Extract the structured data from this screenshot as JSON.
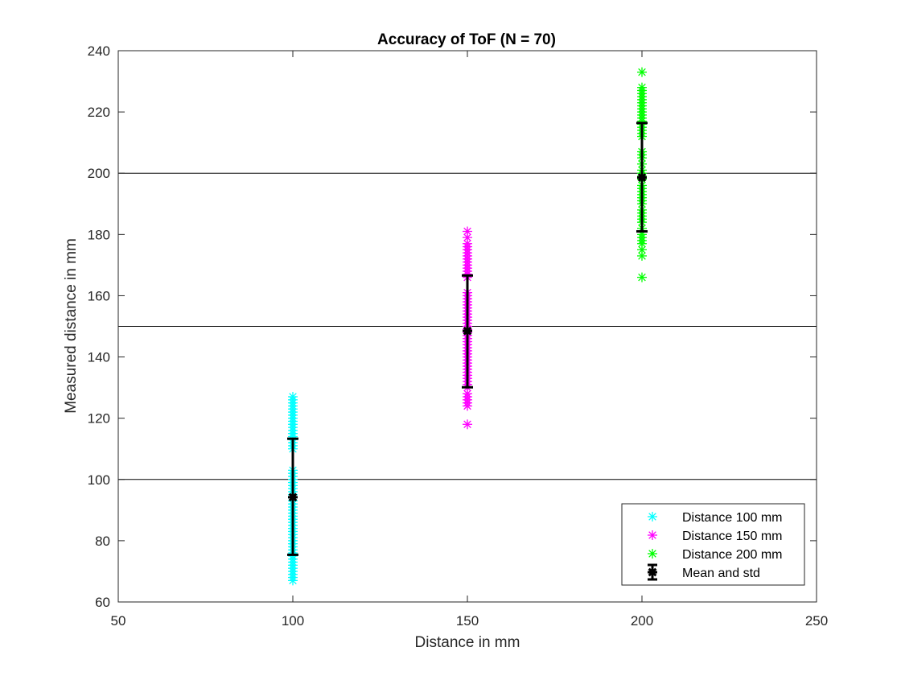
{
  "chart_data": {
    "type": "scatter",
    "title": "Accuracy of ToF (N = 70)",
    "xlabel": "Distance in mm",
    "ylabel": "Measured distance in mm",
    "xlim": [
      50,
      250
    ],
    "ylim": [
      60,
      240
    ],
    "xticks": [
      50,
      100,
      150,
      200,
      250
    ],
    "yticks": [
      60,
      80,
      100,
      120,
      140,
      160,
      180,
      200,
      220,
      240
    ],
    "reference_lines_y": [
      100,
      150,
      200
    ],
    "grid": false,
    "legend_position": "bottom-right",
    "series": [
      {
        "name": "Distance 100 mm",
        "color": "#00ffff",
        "marker": "asterisk",
        "x": 100,
        "y": [
          67,
          68,
          69,
          70,
          71,
          72,
          73,
          74,
          75,
          76,
          77,
          78,
          79,
          80,
          81,
          82,
          83,
          84,
          85,
          86,
          87,
          88,
          89,
          90,
          91,
          92,
          93,
          94,
          95,
          96,
          97,
          98,
          99,
          100,
          101,
          102,
          103,
          110,
          111,
          112,
          113,
          114,
          115,
          116,
          117,
          118,
          119,
          120,
          121,
          122,
          123,
          124,
          125,
          126,
          127
        ]
      },
      {
        "name": "Distance 150 mm",
        "color": "#ff00ff",
        "marker": "asterisk",
        "x": 150,
        "y": [
          118,
          124,
          125,
          126,
          127,
          128,
          130,
          131,
          132,
          133,
          134,
          135,
          136,
          137,
          138,
          139,
          140,
          141,
          142,
          143,
          144,
          145,
          146,
          147,
          148,
          149,
          150,
          151,
          152,
          153,
          154,
          155,
          156,
          157,
          158,
          159,
          160,
          161,
          166,
          167,
          168,
          169,
          170,
          171,
          172,
          173,
          174,
          175,
          176,
          177,
          179,
          181
        ]
      },
      {
        "name": "Distance 200 mm",
        "color": "#00ff00",
        "marker": "asterisk",
        "x": 200,
        "y": [
          166,
          173,
          175,
          177,
          178,
          179,
          180,
          182,
          184,
          185,
          186,
          187,
          188,
          190,
          191,
          192,
          193,
          194,
          195,
          196,
          198,
          199,
          200,
          201,
          203,
          205,
          206,
          207,
          212,
          213,
          214,
          215,
          216,
          217,
          218,
          219,
          220,
          221,
          222,
          223,
          224,
          225,
          226,
          227,
          228,
          233
        ]
      }
    ],
    "errorbars": {
      "name": "Mean and std",
      "color": "#000000",
      "points": [
        {
          "x": 100,
          "mean": 94.2,
          "lower": 75.4,
          "upper": 113.3
        },
        {
          "x": 150,
          "mean": 148.5,
          "lower": 130.1,
          "upper": 166.6
        },
        {
          "x": 200,
          "mean": 198.6,
          "lower": 181.0,
          "upper": 216.4
        }
      ]
    }
  }
}
